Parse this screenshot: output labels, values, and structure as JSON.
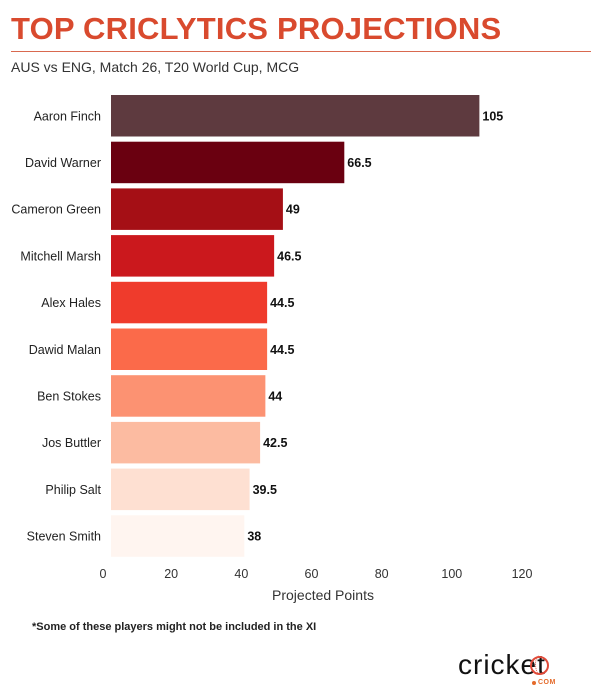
{
  "header": {
    "title": "TOP CRICLYTICS PROJECTIONS",
    "subtitle": "AUS vs ENG, Match 26, T20 World Cup, MCG"
  },
  "footnote": "*Some of these players might not be included in the XI",
  "logo": {
    "wordmark": "cricket",
    "suffix": "COM",
    "colors": {
      "text": "#111111",
      "accent": "#e04b3a",
      "suffix": "#e46a2a"
    }
  },
  "colors": {
    "title": "#d94a2e",
    "rule": "#d9694f"
  },
  "chart_data": {
    "type": "bar",
    "orientation": "horizontal",
    "categories": [
      "Aaron Finch",
      "David Warner",
      "Cameron Green",
      "Mitchell Marsh",
      "Alex Hales",
      "Dawid Malan",
      "Ben Stokes",
      "Jos Buttler",
      "Philip Salt",
      "Steven Smith"
    ],
    "values": [
      105,
      66.5,
      49,
      46.5,
      44.5,
      44.5,
      44,
      42.5,
      39.5,
      38
    ],
    "value_labels": [
      "105",
      "66.5",
      "49",
      "46.5",
      "44.5",
      "44.5",
      "44",
      "42.5",
      "39.5",
      "38"
    ],
    "bar_colors": [
      "#5e3a3f",
      "#6a0010",
      "#a50f15",
      "#cb181d",
      "#ef3b2c",
      "#fb6a4a",
      "#fc9272",
      "#fcbba1",
      "#fee0d2",
      "#fff5f0"
    ],
    "xlabel": "Projected Points",
    "ylabel": "",
    "xlim": [
      0,
      120
    ],
    "xticks": [
      0,
      20,
      40,
      60,
      80,
      100,
      120
    ],
    "grid": false,
    "legend": "none"
  }
}
